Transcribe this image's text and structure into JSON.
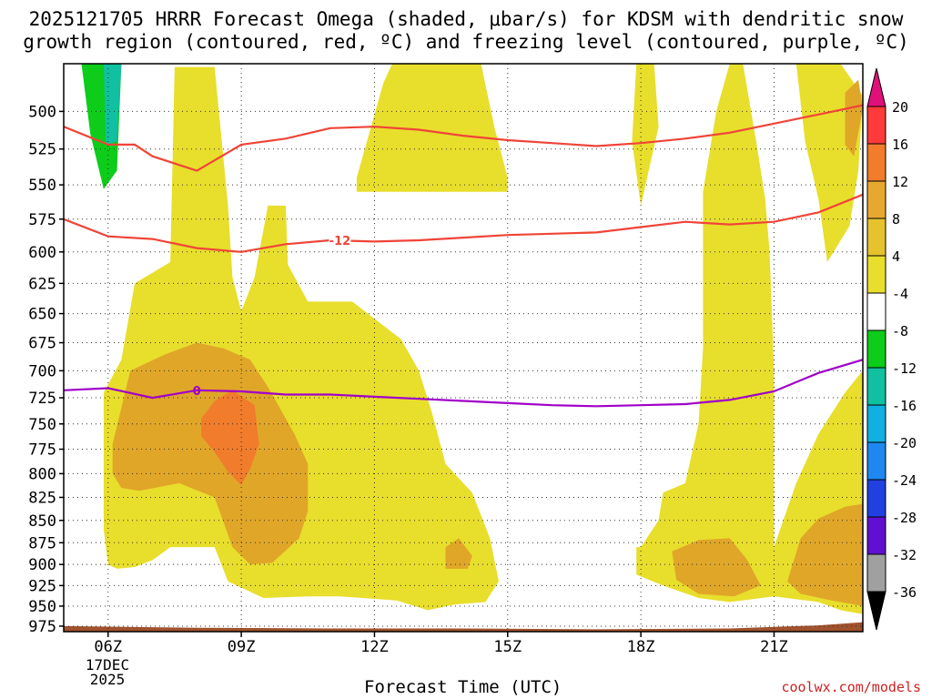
{
  "title_line1": "2025121705 HRRR Forecast Omega (shaded, μbar/s) for KDSM with dendritic snow",
  "title_line2": "growth region (contoured, red, ºC) and freezing level (contoured, purple, ºC)",
  "credit": "coolwx.com/models",
  "chart_data": {
    "type": "contour",
    "title": "2025121705 HRRR Forecast Omega (shaded, μbar/s) for KDSM with dendritic snow growth region (contoured, red, ºC) and freezing level (contoured, purple, ºC)",
    "xlabel": "Forecast Time (UTC)",
    "ylabel": "",
    "x_range_hours": [
      5,
      23
    ],
    "y_range_hPa": [
      982,
      470
    ],
    "y_ticks": [
      500,
      525,
      550,
      575,
      600,
      625,
      650,
      675,
      700,
      725,
      750,
      775,
      800,
      825,
      850,
      875,
      900,
      925,
      950,
      975
    ],
    "x_ticks": [
      {
        "hour": 6,
        "label": "06Z"
      },
      {
        "hour": 9,
        "label": "09Z"
      },
      {
        "hour": 12,
        "label": "12Z"
      },
      {
        "hour": 15,
        "label": "15Z"
      },
      {
        "hour": 18,
        "label": "18Z"
      },
      {
        "hour": 21,
        "label": "21Z"
      }
    ],
    "date_label": [
      "17DEC",
      "2025"
    ],
    "colorbar": {
      "levels": [
        20,
        16,
        12,
        8,
        4,
        -4,
        -8,
        -12,
        -16,
        -20,
        -24,
        -28,
        -32,
        -36
      ],
      "colors": [
        "#ff3a3a",
        "#f07c2c",
        "#e8a830",
        "#e6c22e",
        "#e8de2c",
        "#ffffff",
        "#0dcc1a",
        "#10c0a0",
        "#10b0e0",
        "#1e88f0",
        "#2040e0",
        "#6010d0",
        "#a010c0",
        "#a0a0a0"
      ],
      "top_arrow_color": "#e0107a",
      "bottom_arrow_color": "#000000"
    },
    "contours": [
      {
        "name": "dendritic-upper",
        "color": "#f04438",
        "label": "",
        "points": [
          [
            5,
            510
          ],
          [
            6,
            522
          ],
          [
            6.6,
            522
          ],
          [
            7,
            530
          ],
          [
            8,
            540
          ],
          [
            9,
            522
          ],
          [
            10,
            518
          ],
          [
            11,
            511
          ],
          [
            12,
            510
          ],
          [
            13,
            512
          ],
          [
            14,
            516
          ],
          [
            15,
            519
          ],
          [
            16,
            521
          ],
          [
            17,
            523
          ],
          [
            18,
            521
          ],
          [
            19,
            518
          ],
          [
            20,
            514
          ],
          [
            21,
            508
          ],
          [
            22,
            502
          ],
          [
            23,
            496
          ]
        ]
      },
      {
        "name": "dendritic-lower",
        "color": "#f04438",
        "label": "-12",
        "points": [
          [
            5,
            575
          ],
          [
            6,
            588
          ],
          [
            7,
            590
          ],
          [
            8,
            597
          ],
          [
            9,
            600
          ],
          [
            10,
            594
          ],
          [
            11,
            591
          ],
          [
            12,
            592
          ],
          [
            13,
            591
          ],
          [
            14,
            589
          ],
          [
            15,
            587
          ],
          [
            16,
            586
          ],
          [
            17,
            585
          ],
          [
            18,
            581
          ],
          [
            19,
            577
          ],
          [
            20,
            579
          ],
          [
            21,
            577
          ],
          [
            22,
            570
          ],
          [
            23,
            557
          ]
        ]
      },
      {
        "name": "freezing-level",
        "color": "#a000c8",
        "label": "0",
        "points": [
          [
            5,
            718
          ],
          [
            6,
            716
          ],
          [
            7,
            725
          ],
          [
            8,
            718
          ],
          [
            9,
            719
          ],
          [
            10,
            722
          ],
          [
            11,
            722
          ],
          [
            12,
            724
          ],
          [
            13,
            726
          ],
          [
            14,
            728
          ],
          [
            15,
            730
          ],
          [
            16,
            732
          ],
          [
            17,
            733
          ],
          [
            18,
            732
          ],
          [
            19,
            731
          ],
          [
            20,
            727
          ],
          [
            21,
            719
          ],
          [
            22,
            702
          ],
          [
            23,
            690
          ]
        ]
      }
    ],
    "omega_regions": [
      {
        "level": "4 to 8",
        "color": "#e8de2c",
        "points": [
          [
            5.9,
            860
          ],
          [
            5.9,
            720
          ],
          [
            6.3,
            690
          ],
          [
            6.6,
            625
          ],
          [
            7.4,
            608
          ],
          [
            7.5,
            472
          ],
          [
            8.4,
            472
          ],
          [
            8.7,
            565
          ],
          [
            8.8,
            620
          ],
          [
            9,
            648
          ],
          [
            9.3,
            620
          ],
          [
            9.6,
            565
          ],
          [
            10,
            565
          ],
          [
            10.05,
            610
          ],
          [
            10.5,
            640
          ],
          [
            11.5,
            640
          ],
          [
            12.6,
            672
          ],
          [
            13,
            700
          ],
          [
            13.3,
            740
          ],
          [
            13.6,
            790
          ],
          [
            14.2,
            820
          ],
          [
            14.6,
            870
          ],
          [
            14.8,
            920
          ],
          [
            14.5,
            945
          ],
          [
            13.8,
            948
          ],
          [
            13.2,
            955
          ],
          [
            12.5,
            943
          ],
          [
            11.2,
            938
          ],
          [
            10.5,
            938
          ],
          [
            9.5,
            940
          ],
          [
            8.7,
            920
          ],
          [
            8.4,
            880
          ],
          [
            7.4,
            880
          ],
          [
            7,
            895
          ],
          [
            6.6,
            903
          ],
          [
            6.2,
            905
          ],
          [
            6,
            900
          ]
        ]
      },
      {
        "level": "4 to 8",
        "color": "#e8de2c",
        "points": [
          [
            11.6,
            545
          ],
          [
            12.2,
            482
          ],
          [
            12.4,
            470
          ],
          [
            14.4,
            470
          ],
          [
            14.7,
            510
          ],
          [
            15,
            545
          ],
          [
            15,
            555
          ],
          [
            12.7,
            555
          ],
          [
            11.6,
            555
          ]
        ]
      },
      {
        "level": "4 to 8",
        "color": "#e8de2c",
        "points": [
          [
            17.9,
            470
          ],
          [
            18.3,
            470
          ],
          [
            18.4,
            510
          ],
          [
            18,
            565
          ],
          [
            17.8,
            520
          ]
        ]
      },
      {
        "level": "4 to 8",
        "color": "#e8de2c",
        "points": [
          [
            19.4,
            555
          ],
          [
            19.7,
            500
          ],
          [
            20,
            470
          ],
          [
            20.3,
            470
          ],
          [
            20.6,
            520
          ],
          [
            20.8,
            560
          ],
          [
            20.9,
            600
          ],
          [
            21,
            700
          ],
          [
            21,
            820
          ],
          [
            21,
            880
          ],
          [
            21.5,
            810
          ],
          [
            22,
            760
          ],
          [
            22.6,
            720
          ],
          [
            23,
            700
          ],
          [
            23,
            960
          ],
          [
            22.5,
            955
          ],
          [
            22,
            945
          ],
          [
            21,
            938
          ],
          [
            20,
            945
          ],
          [
            19.3,
            940
          ],
          [
            18.5,
            925
          ],
          [
            17.9,
            912
          ],
          [
            17.9,
            880
          ],
          [
            18,
            880
          ],
          [
            18.4,
            850
          ],
          [
            18.5,
            820
          ],
          [
            19,
            810
          ],
          [
            19.3,
            750
          ],
          [
            19.4,
            680
          ]
        ]
      },
      {
        "level": "4 to 8",
        "color": "#e8de2c",
        "points": [
          [
            21.5,
            470
          ],
          [
            22.5,
            470
          ],
          [
            23,
            490
          ],
          [
            22.9,
            540
          ],
          [
            22.7,
            580
          ],
          [
            22.2,
            608
          ],
          [
            22,
            560
          ],
          [
            21.7,
            520
          ]
        ]
      },
      {
        "level": "8 to 12",
        "color": "#e0a628",
        "points": [
          [
            6.1,
            770
          ],
          [
            6.5,
            700
          ],
          [
            7.3,
            685
          ],
          [
            8,
            675
          ],
          [
            8.6,
            680
          ],
          [
            9.2,
            690
          ],
          [
            9.6,
            715
          ],
          [
            10.2,
            760
          ],
          [
            10.5,
            790
          ],
          [
            10.5,
            840
          ],
          [
            10.3,
            870
          ],
          [
            9.7,
            898
          ],
          [
            9.2,
            900
          ],
          [
            8.8,
            880
          ],
          [
            8.4,
            825
          ],
          [
            7.6,
            810
          ],
          [
            6.7,
            818
          ],
          [
            6.3,
            815
          ],
          [
            6.1,
            800
          ]
        ]
      },
      {
        "level": "8 to 12",
        "color": "#e0a628",
        "points": [
          [
            13.6,
            905
          ],
          [
            14.1,
            905
          ],
          [
            14.2,
            890
          ],
          [
            13.9,
            870
          ],
          [
            13.6,
            880
          ]
        ]
      },
      {
        "level": "8 to 12",
        "color": "#e0a628",
        "points": [
          [
            18.7,
            885
          ],
          [
            19.3,
            872
          ],
          [
            20,
            870
          ],
          [
            20.4,
            895
          ],
          [
            20.7,
            925
          ],
          [
            20.1,
            938
          ],
          [
            19.3,
            935
          ],
          [
            18.8,
            918
          ]
        ]
      },
      {
        "level": "8 to 12",
        "color": "#e0a628",
        "points": [
          [
            21.3,
            920
          ],
          [
            21.6,
            870
          ],
          [
            22,
            848
          ],
          [
            22.6,
            835
          ],
          [
            23,
            832
          ],
          [
            23,
            950
          ],
          [
            22.3,
            943
          ],
          [
            21.6,
            935
          ]
        ]
      },
      {
        "level": "8 to 12",
        "color": "#e0a628",
        "points": [
          [
            22.6,
            488
          ],
          [
            22.9,
            480
          ],
          [
            23,
            498
          ],
          [
            22.8,
            530
          ],
          [
            22.6,
            522
          ]
        ]
      },
      {
        "level": "12 to 16",
        "color": "#f07c2c",
        "points": [
          [
            8.1,
            745
          ],
          [
            8.4,
            728
          ],
          [
            8.8,
            718
          ],
          [
            9.3,
            732
          ],
          [
            9.4,
            770
          ],
          [
            9.2,
            795
          ],
          [
            9,
            812
          ],
          [
            8.7,
            798
          ],
          [
            8.4,
            778
          ],
          [
            8.1,
            762
          ]
        ]
      },
      {
        "level": "-4 to -8",
        "color": "#0dcc1a",
        "points": [
          [
            5.4,
            470
          ],
          [
            6.3,
            470
          ],
          [
            6.2,
            540
          ],
          [
            5.9,
            553
          ],
          [
            5.6,
            515
          ]
        ]
      },
      {
        "level": "-8 to -12",
        "color": "#10c0a0",
        "points": [
          [
            5.9,
            470
          ],
          [
            6.3,
            470
          ],
          [
            6.2,
            520
          ],
          [
            5.95,
            522
          ]
        ]
      }
    ],
    "terrain": {
      "color": "#a0522d",
      "points": [
        [
          5,
          975
        ],
        [
          8,
          977
        ],
        [
          11,
          978
        ],
        [
          14,
          978
        ],
        [
          17,
          979
        ],
        [
          20,
          978
        ],
        [
          22,
          974
        ],
        [
          23,
          970
        ]
      ]
    },
    "grid": true
  }
}
